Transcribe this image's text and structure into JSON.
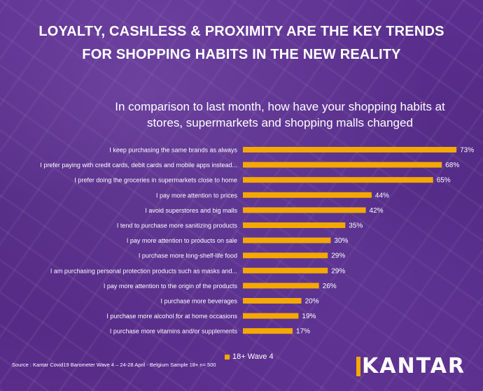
{
  "title": {
    "line1": "LOYALTY, CASHLESS & PROXIMITY ARE THE KEY TRENDS",
    "line2": "FOR SHOPPING HABITS IN THE NEW REALITY"
  },
  "subtitle": {
    "line1": "In comparison to last month, how have your shopping habits at",
    "line2": "stores, supermarkets and shopping malls changed"
  },
  "chart_data": {
    "type": "bar",
    "orientation": "horizontal",
    "categories": [
      "I keep purchasing the same brands as always",
      "I prefer paying with credit cards, debit cards and mobile apps instead...",
      "I prefer doing the groceries in supermarkets close to home",
      "I pay more attention to prices",
      "I avoid superstores and big malls",
      "I tend to purchase more sanitizing products",
      "I pay more attention to products on sale",
      "I purchase more long-shelf-life food",
      "I am purchasing personal protection products such as masks and...",
      "I pay more attention to the origin of the products",
      "I purchase more beverages",
      "I purchase more alcohol for at home occasions",
      "I purchase more vitamins and/or supplements"
    ],
    "series": [
      {
        "name": "18+ Wave 4",
        "values": [
          73,
          68,
          65,
          44,
          42,
          35,
          30,
          29,
          29,
          26,
          20,
          19,
          17
        ],
        "labels": [
          "73%",
          "68%",
          "65%",
          "44%",
          "42%",
          "35%",
          "30%",
          "29%",
          "29%",
          "26%",
          "20%",
          "19%",
          "17%"
        ]
      }
    ],
    "xlim": [
      0,
      78
    ],
    "grid": false,
    "legend_position": "bottom",
    "bar_color": "#f5a800"
  },
  "source": "Source : Kantar Covid19 Barometer Wave 4 – 24-28 April - Belgium Sample 18+ n= 500",
  "logo": "KANTAR",
  "colors": {
    "background": "#5a2c8c",
    "accent": "#f5a800",
    "text": "#ffffff"
  }
}
